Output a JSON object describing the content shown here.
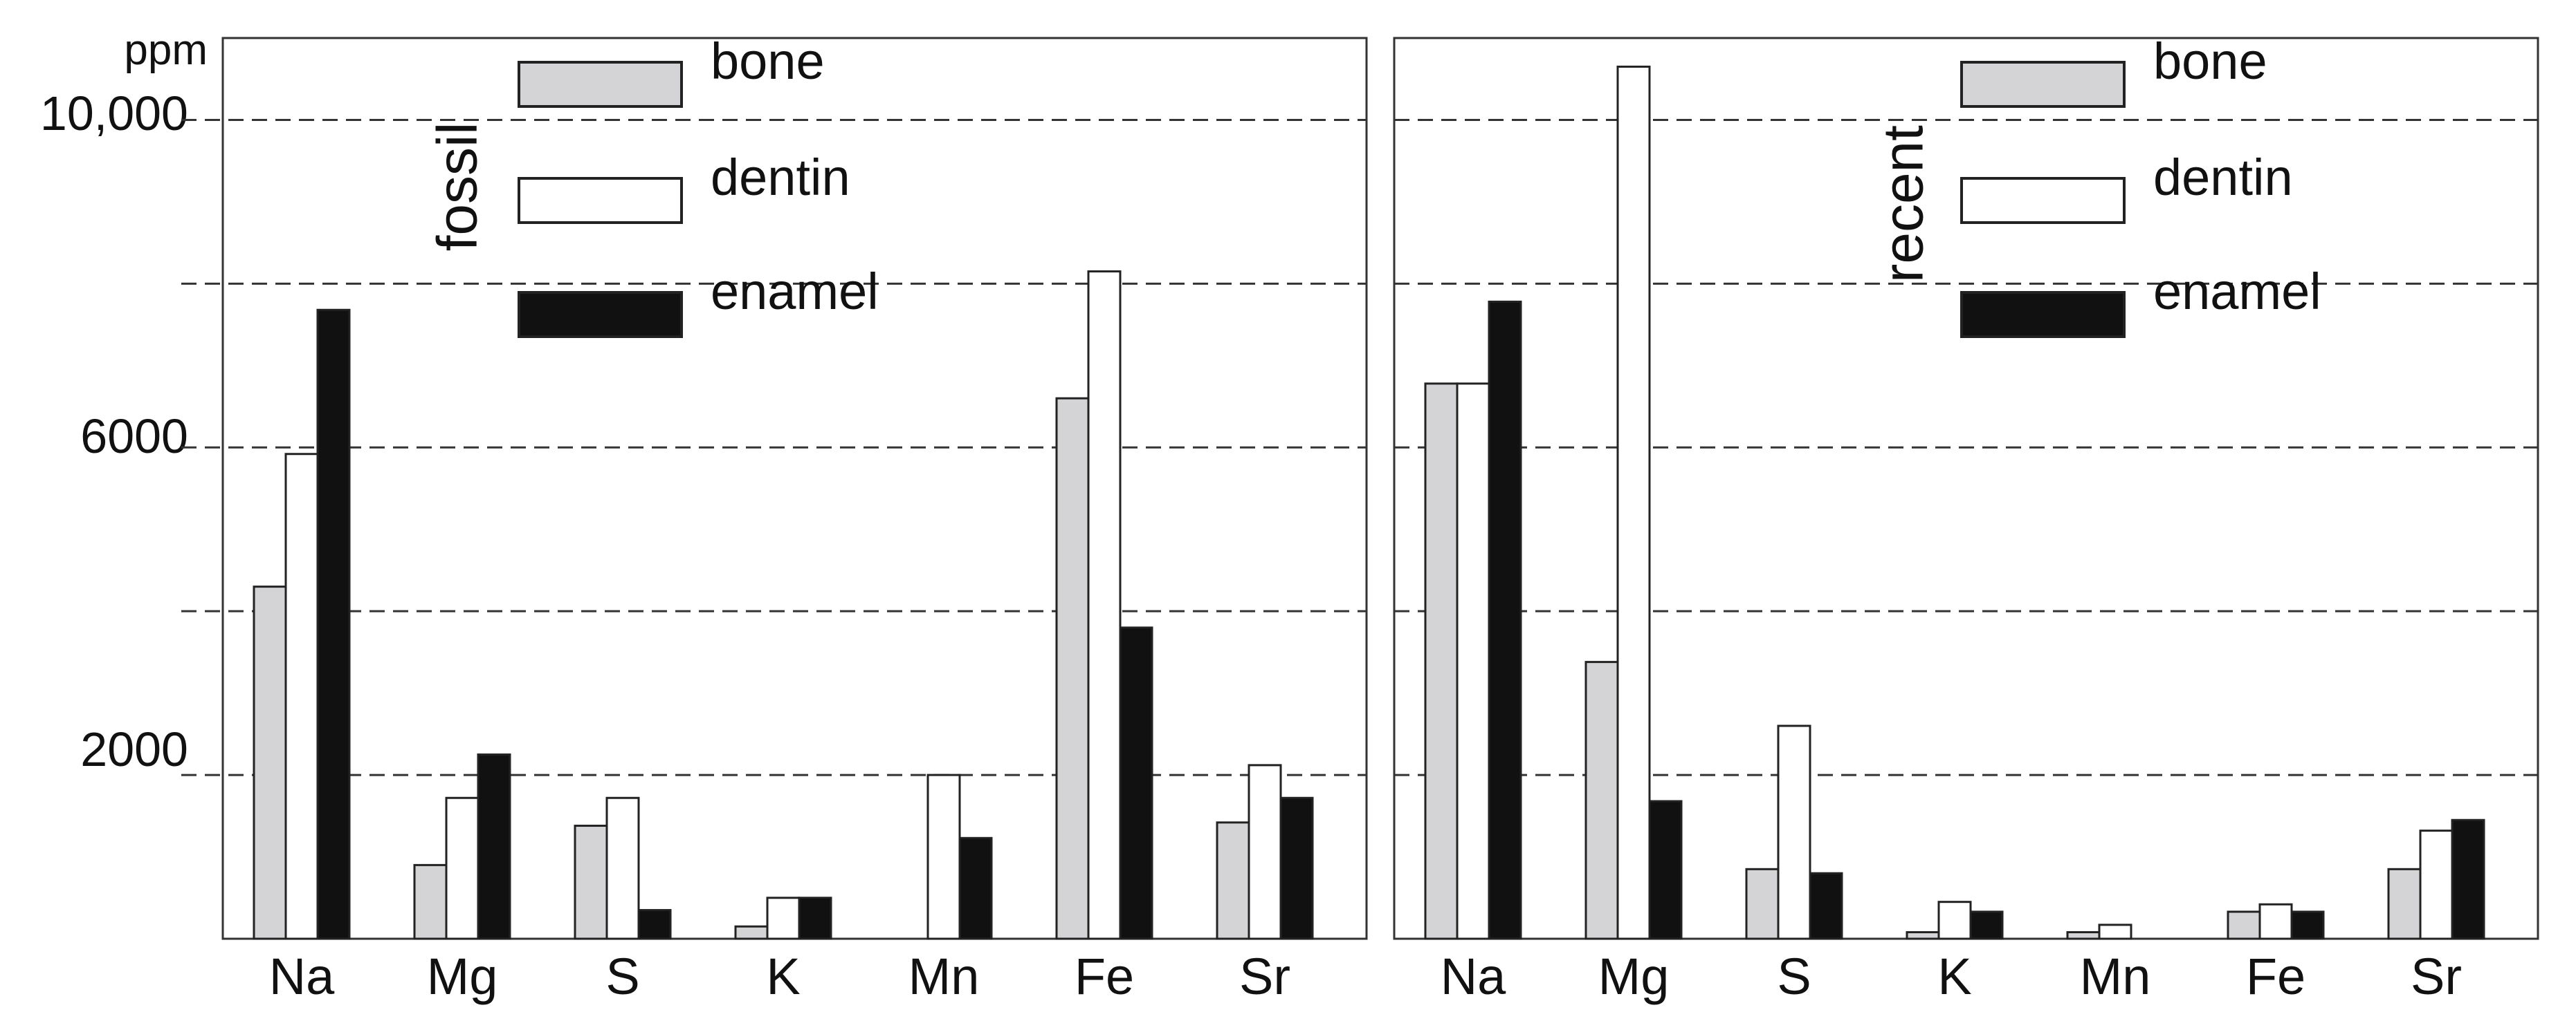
{
  "y_axis": {
    "unit_label": "ppm",
    "tick_labels": [
      "2000",
      "6000",
      "10,000"
    ]
  },
  "legend": [
    "bone",
    "dentin",
    "enamel"
  ],
  "colors": {
    "bone": "#d4d4d6",
    "dentin": "#ffffff",
    "enamel": "#111111",
    "gridline": "#333333",
    "frame": "#333333"
  },
  "chart_data": [
    {
      "type": "bar",
      "title": "fossil",
      "categories": [
        "Na",
        "Mg",
        "S",
        "K",
        "Mn",
        "Fe",
        "Sr"
      ],
      "series": [
        {
          "name": "bone",
          "values": [
            4300,
            900,
            1380,
            150,
            0,
            6600,
            1420
          ]
        },
        {
          "name": "dentin",
          "values": [
            5920,
            1720,
            1720,
            500,
            2000,
            8150,
            2120
          ]
        },
        {
          "name": "enamel",
          "values": [
            7680,
            2250,
            350,
            500,
            1230,
            3800,
            1720
          ]
        }
      ],
      "ylim": [
        0,
        11000
      ],
      "gridlines": [
        2000,
        4000,
        6000,
        8000,
        10000
      ],
      "y_ticks_labeled": [
        2000,
        6000,
        10000
      ],
      "legend_position": "top"
    },
    {
      "type": "bar",
      "title": "recent",
      "categories": [
        "Na",
        "Mg",
        "S",
        "K",
        "Mn",
        "Fe",
        "Sr"
      ],
      "series": [
        {
          "name": "bone",
          "values": [
            6780,
            3380,
            850,
            80,
            80,
            330,
            850
          ]
        },
        {
          "name": "dentin",
          "values": [
            6780,
            10650,
            2600,
            450,
            170,
            420,
            1320
          ]
        },
        {
          "name": "enamel",
          "values": [
            7780,
            1680,
            800,
            330,
            0,
            330,
            1450
          ]
        }
      ],
      "ylim": [
        0,
        11000
      ],
      "gridlines": [
        2000,
        4000,
        6000,
        8000,
        10000
      ],
      "legend_position": "top"
    }
  ]
}
